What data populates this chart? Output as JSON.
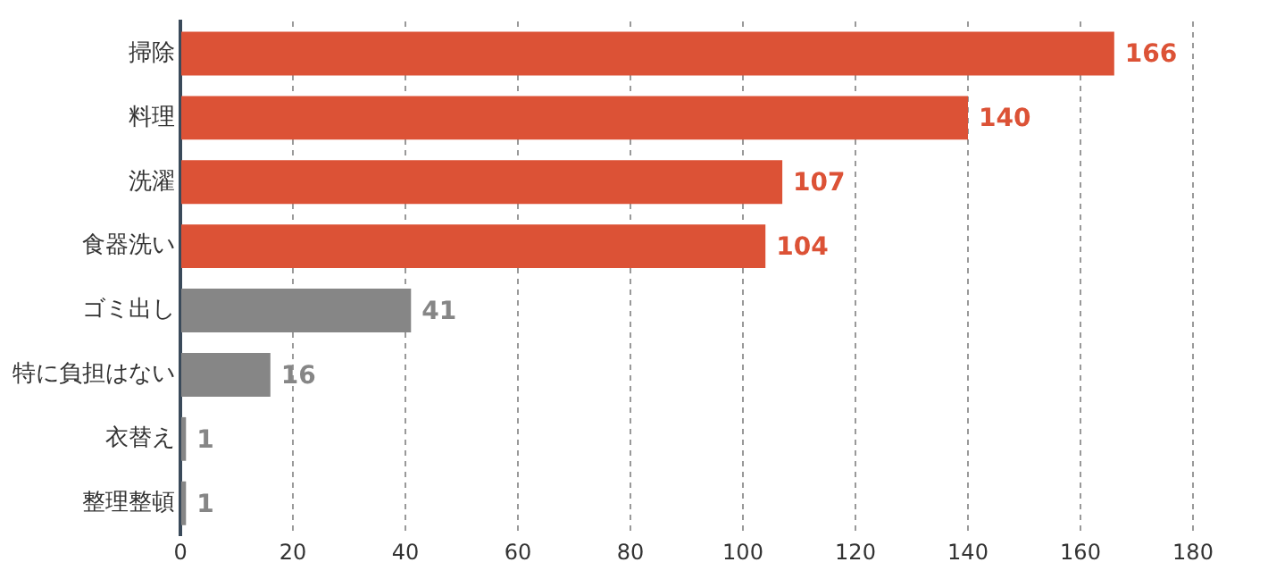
{
  "chart_data": {
    "type": "bar",
    "orientation": "horizontal",
    "categories": [
      "掃除",
      "料理",
      "洗濯",
      "食器洗い",
      "ゴミ出し",
      "特に負担はない",
      "衣替え",
      "整理整頓"
    ],
    "values": [
      166,
      140,
      107,
      104,
      41,
      16,
      1,
      1
    ],
    "colors": [
      "#dc5236",
      "#dc5236",
      "#dc5236",
      "#dc5236",
      "#868686",
      "#868686",
      "#868686",
      "#868686"
    ],
    "xlim": [
      0,
      180
    ],
    "xticks": [
      0,
      20,
      40,
      60,
      80,
      100,
      120,
      140,
      160,
      180
    ],
    "grid": "x",
    "data_labels": true,
    "legend": false
  }
}
